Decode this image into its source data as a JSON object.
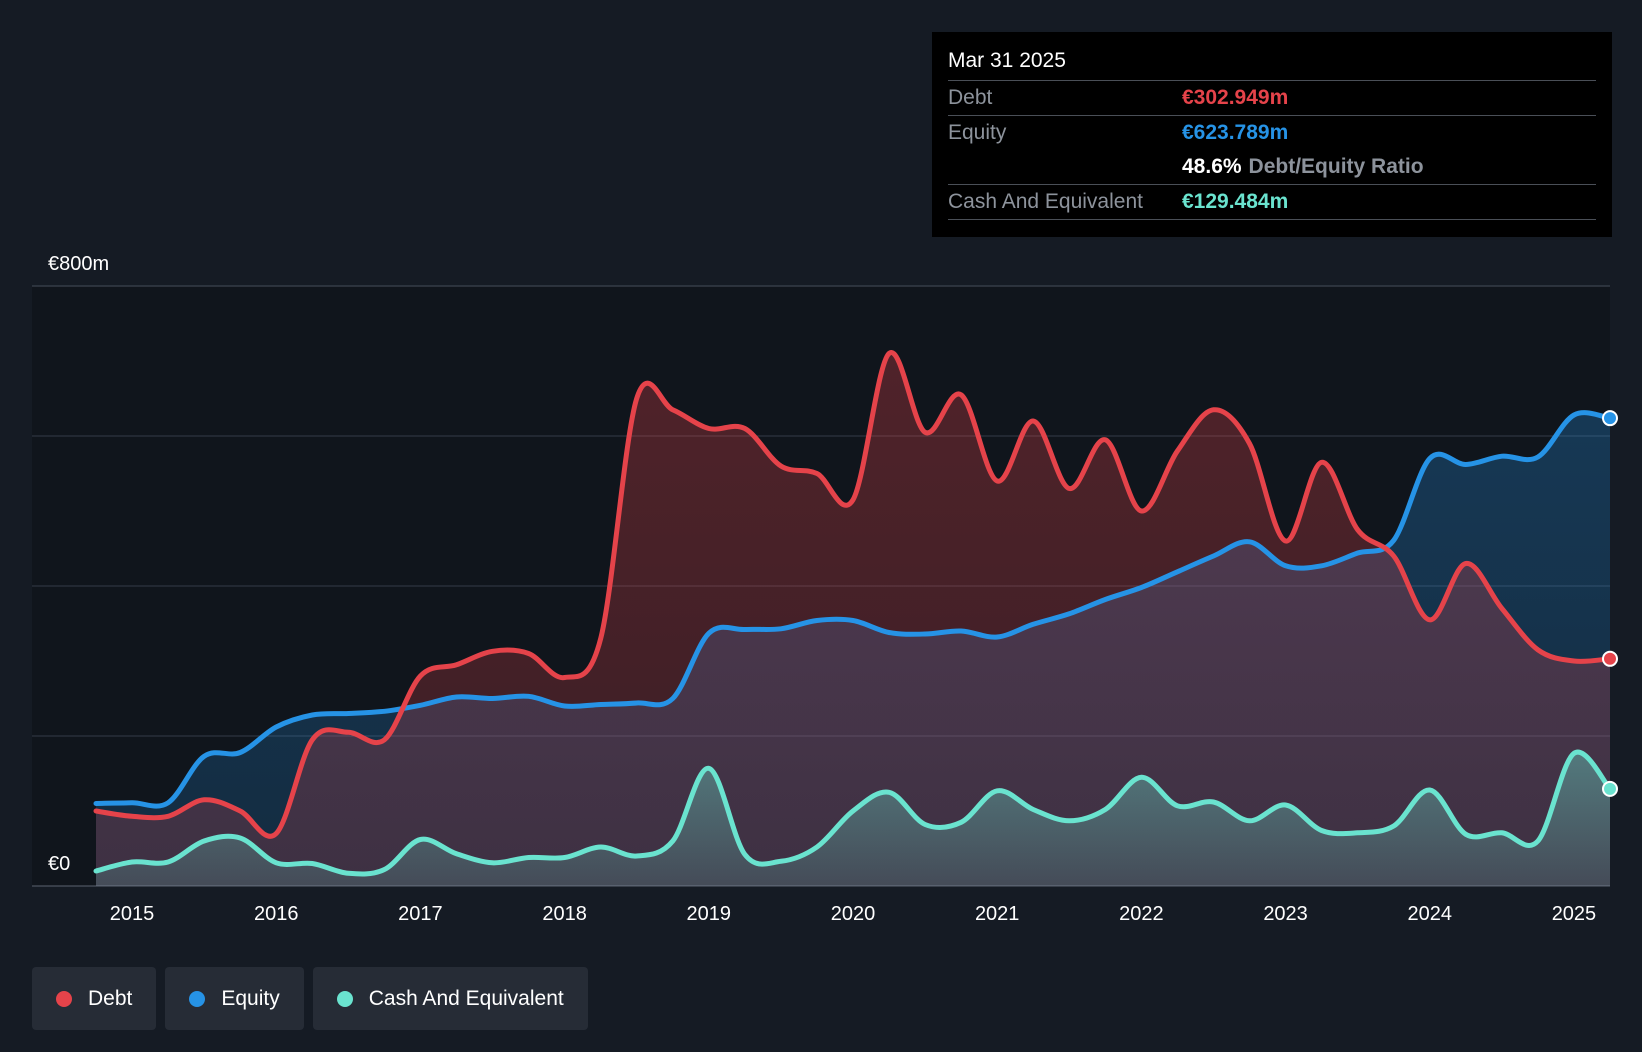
{
  "tooltip": {
    "date": "Mar 31 2025",
    "debt_label": "Debt",
    "debt_value": "€302.949m",
    "equity_label": "Equity",
    "equity_value": "€623.789m",
    "ratio_value": "48.6%",
    "ratio_label": "Debt/Equity Ratio",
    "cash_label": "Cash And Equivalent",
    "cash_value": "€129.484m"
  },
  "legend": [
    {
      "label": "Debt",
      "color": "#e5434a"
    },
    {
      "label": "Equity",
      "color": "#2693e6"
    },
    {
      "label": "Cash And Equivalent",
      "color": "#6ae3cf"
    }
  ],
  "chart_data": {
    "type": "area",
    "title": "",
    "y_top_label": "€800m",
    "y_bottom_label": "€0",
    "ylim": [
      0,
      800
    ],
    "xlim": [
      2014.75,
      2025.25
    ],
    "x_ticks": [
      2015,
      2016,
      2017,
      2018,
      2019,
      2020,
      2021,
      2022,
      2023,
      2024,
      2025
    ],
    "x_tick_labels": [
      "2015",
      "2016",
      "2017",
      "2018",
      "2019",
      "2020",
      "2021",
      "2022",
      "2023",
      "2024",
      "2025"
    ],
    "colors": {
      "debt": "#e5434a",
      "equity": "#2693e6",
      "cash": "#6ae3cf"
    },
    "series": [
      {
        "name": "Debt",
        "points": [
          [
            2014.75,
            100
          ],
          [
            2015.0,
            93
          ],
          [
            2015.25,
            93
          ],
          [
            2015.5,
            115
          ],
          [
            2015.75,
            100
          ],
          [
            2016.0,
            70
          ],
          [
            2016.25,
            195
          ],
          [
            2016.5,
            205
          ],
          [
            2016.75,
            195
          ],
          [
            2017.0,
            280
          ],
          [
            2017.25,
            295
          ],
          [
            2017.5,
            313
          ],
          [
            2017.75,
            310
          ],
          [
            2018.0,
            278
          ],
          [
            2018.25,
            330
          ],
          [
            2018.5,
            650
          ],
          [
            2018.75,
            635
          ],
          [
            2019.0,
            610
          ],
          [
            2019.25,
            610
          ],
          [
            2019.5,
            560
          ],
          [
            2019.75,
            550
          ],
          [
            2020.0,
            515
          ],
          [
            2020.25,
            710
          ],
          [
            2020.5,
            605
          ],
          [
            2020.75,
            655
          ],
          [
            2021.0,
            540
          ],
          [
            2021.25,
            620
          ],
          [
            2021.5,
            530
          ],
          [
            2021.75,
            595
          ],
          [
            2022.0,
            500
          ],
          [
            2022.25,
            580
          ],
          [
            2022.5,
            635
          ],
          [
            2022.75,
            590
          ],
          [
            2023.0,
            460
          ],
          [
            2023.25,
            565
          ],
          [
            2023.5,
            475
          ],
          [
            2023.75,
            440
          ],
          [
            2024.0,
            355
          ],
          [
            2024.25,
            430
          ],
          [
            2024.5,
            370
          ],
          [
            2024.75,
            315
          ],
          [
            2025.0,
            300
          ],
          [
            2025.25,
            302.949
          ]
        ]
      },
      {
        "name": "Equity",
        "points": [
          [
            2014.75,
            110
          ],
          [
            2015.0,
            111
          ],
          [
            2015.25,
            111
          ],
          [
            2015.5,
            173
          ],
          [
            2015.75,
            178
          ],
          [
            2016.0,
            212
          ],
          [
            2016.25,
            228
          ],
          [
            2016.5,
            230
          ],
          [
            2016.75,
            233
          ],
          [
            2017.0,
            241
          ],
          [
            2017.25,
            252
          ],
          [
            2017.5,
            250
          ],
          [
            2017.75,
            253
          ],
          [
            2018.0,
            240
          ],
          [
            2018.25,
            242
          ],
          [
            2018.5,
            244
          ],
          [
            2018.75,
            250
          ],
          [
            2019.0,
            337
          ],
          [
            2019.25,
            342
          ],
          [
            2019.5,
            343
          ],
          [
            2019.75,
            354
          ],
          [
            2020.0,
            354
          ],
          [
            2020.25,
            338
          ],
          [
            2020.5,
            336
          ],
          [
            2020.75,
            340
          ],
          [
            2021.0,
            332
          ],
          [
            2021.25,
            349
          ],
          [
            2021.5,
            363
          ],
          [
            2021.75,
            382
          ],
          [
            2022.0,
            398
          ],
          [
            2022.25,
            419
          ],
          [
            2022.5,
            440
          ],
          [
            2022.75,
            459
          ],
          [
            2023.0,
            427
          ],
          [
            2023.25,
            427
          ],
          [
            2023.5,
            444
          ],
          [
            2023.75,
            461
          ],
          [
            2024.0,
            570
          ],
          [
            2024.25,
            562
          ],
          [
            2024.5,
            573
          ],
          [
            2024.75,
            572
          ],
          [
            2025.0,
            628
          ],
          [
            2025.25,
            623.789
          ]
        ]
      },
      {
        "name": "Cash And Equivalent",
        "points": [
          [
            2014.75,
            20
          ],
          [
            2015.0,
            32
          ],
          [
            2015.25,
            32
          ],
          [
            2015.5,
            60
          ],
          [
            2015.75,
            64
          ],
          [
            2016.0,
            31
          ],
          [
            2016.25,
            30
          ],
          [
            2016.5,
            17
          ],
          [
            2016.75,
            22
          ],
          [
            2017.0,
            62
          ],
          [
            2017.25,
            43
          ],
          [
            2017.5,
            31
          ],
          [
            2017.75,
            38
          ],
          [
            2018.0,
            38
          ],
          [
            2018.25,
            52
          ],
          [
            2018.5,
            40
          ],
          [
            2018.75,
            60
          ],
          [
            2019.0,
            157
          ],
          [
            2019.25,
            42
          ],
          [
            2019.5,
            33
          ],
          [
            2019.75,
            52
          ],
          [
            2020.0,
            100
          ],
          [
            2020.25,
            125
          ],
          [
            2020.5,
            82
          ],
          [
            2020.75,
            85
          ],
          [
            2021.0,
            127
          ],
          [
            2021.25,
            102
          ],
          [
            2021.5,
            87
          ],
          [
            2021.75,
            102
          ],
          [
            2022.0,
            145
          ],
          [
            2022.25,
            107
          ],
          [
            2022.5,
            112
          ],
          [
            2022.75,
            87
          ],
          [
            2023.0,
            108
          ],
          [
            2023.25,
            74
          ],
          [
            2023.5,
            71
          ],
          [
            2023.75,
            80
          ],
          [
            2024.0,
            128
          ],
          [
            2024.25,
            69
          ],
          [
            2024.5,
            71
          ],
          [
            2024.75,
            60
          ],
          [
            2025.0,
            177
          ],
          [
            2025.25,
            129.484
          ]
        ]
      }
    ]
  }
}
